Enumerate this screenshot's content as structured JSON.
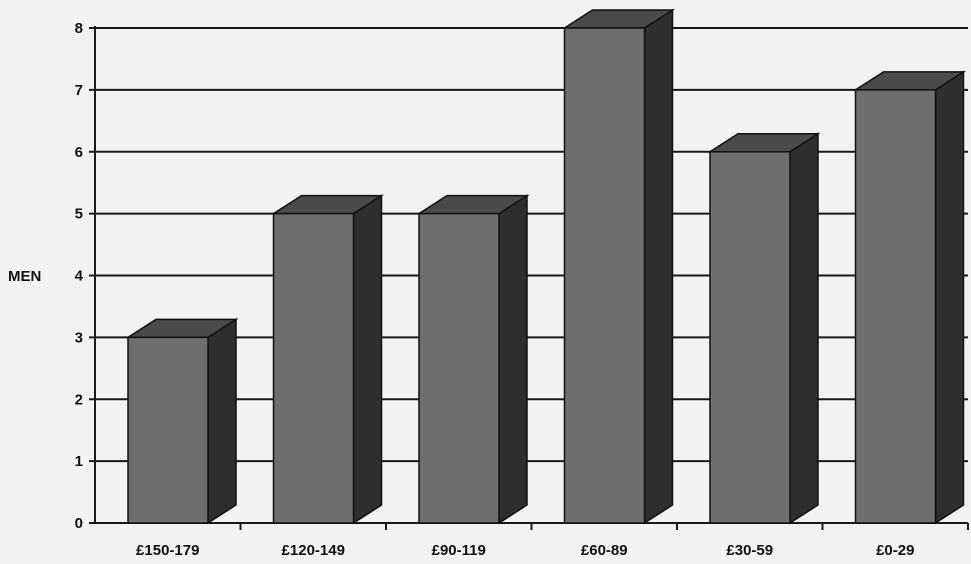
{
  "chart_data": {
    "type": "bar",
    "title": "",
    "xlabel": "",
    "ylabel": "MEN",
    "categories": [
      "£150-179",
      "£120-149",
      "£90-119",
      "£60-89",
      "£30-59",
      "£0-29"
    ],
    "values": [
      3,
      5,
      5,
      8,
      6,
      7
    ],
    "ylim": [
      0,
      8
    ],
    "yticks": [
      "0",
      "1",
      "2",
      "3",
      "4",
      "5",
      "6",
      "7",
      "8"
    ],
    "grid": true,
    "legend": "none",
    "style": "3d-bars",
    "colors": {
      "bar_front": "#6e6e6e",
      "bar_top": "#4a4a4a",
      "bar_side": "#2e2e2e",
      "grid": "#1a1a1a",
      "background": "#f2f2f2"
    }
  }
}
